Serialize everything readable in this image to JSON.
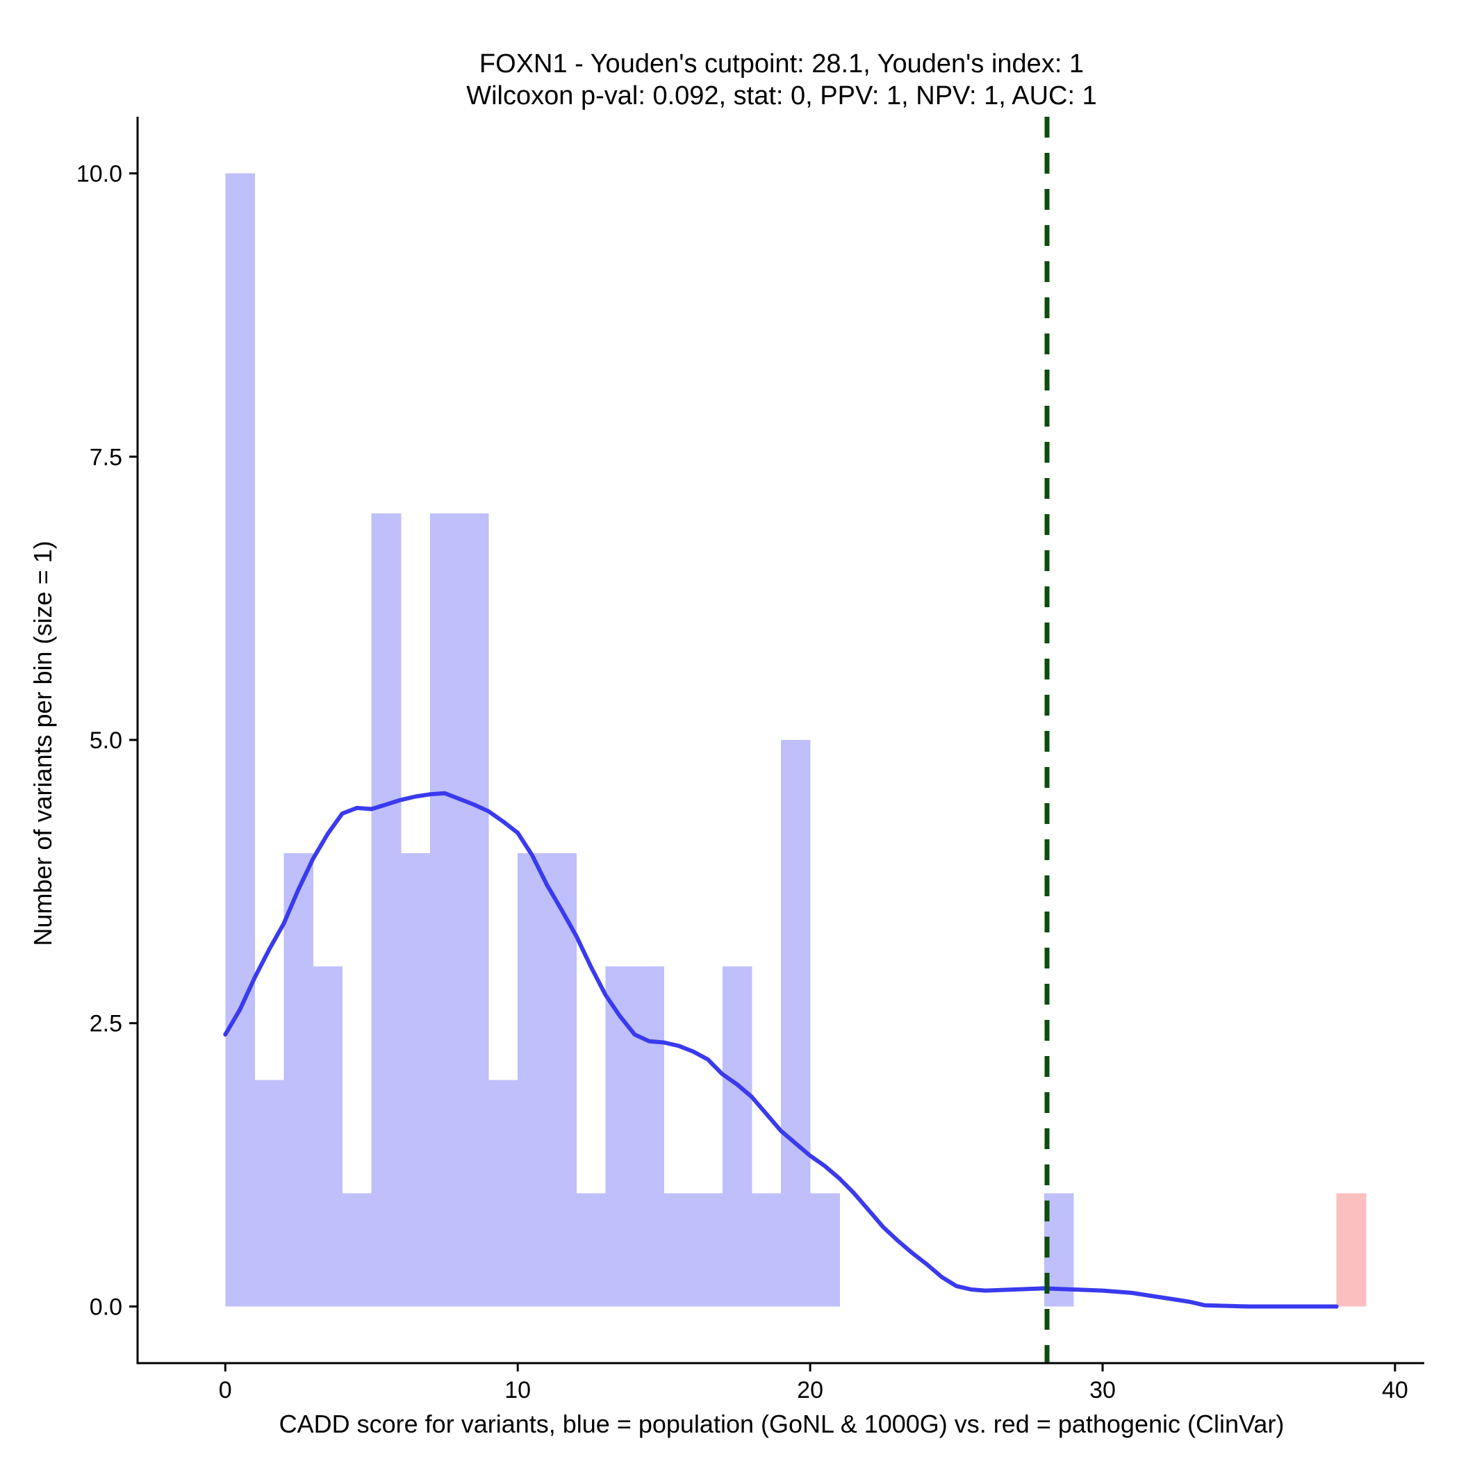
{
  "chart_data": {
    "type": "bar",
    "title_line1": "FOXN1 - Youden's cutpoint: 28.1, Youden's index: 1",
    "title_line2": "Wilcoxon p-val: 0.092, stat: 0, PPV: 1, NPV: 1, AUC: 1",
    "xlabel": "CADD score for variants, blue = population (GoNL & 1000G) vs. red = pathogenic (ClinVar)",
    "ylabel": "Number of variants per bin (size = 1)",
    "xlim": [
      -3,
      41
    ],
    "ylim": [
      -0.5,
      10.5
    ],
    "x_ticks": [
      0,
      10,
      20,
      30,
      40
    ],
    "x_tick_labels": [
      "0",
      "10",
      "20",
      "30",
      "40"
    ],
    "y_ticks": [
      0,
      2.5,
      5,
      7.5,
      10
    ],
    "y_tick_labels": [
      "0.0",
      "2.5",
      "5.0",
      "7.5",
      "10.0"
    ],
    "bin_width": 1,
    "grid": false,
    "colors": {
      "population": "#bfbffb",
      "pathogenic": "#fcbfc0",
      "density": "#3a3aee",
      "cutpoint": "#0d4d0d"
    },
    "series": [
      {
        "group": "population",
        "bin_starts": [
          0,
          1,
          2,
          3,
          4,
          5,
          6,
          7,
          8,
          9,
          10,
          11,
          12,
          13,
          14,
          15,
          16,
          17,
          18,
          19,
          20,
          28
        ],
        "values": [
          10,
          2,
          4,
          3,
          1,
          7,
          4,
          7,
          7,
          2,
          4,
          4,
          1,
          3,
          3,
          1,
          1,
          3,
          1,
          5,
          1,
          1
        ]
      },
      {
        "group": "pathogenic",
        "bin_starts": [
          38
        ],
        "values": [
          1
        ]
      }
    ],
    "density_curve": {
      "x": [
        0,
        0.5,
        1,
        1.5,
        2,
        2.5,
        3,
        3.5,
        4,
        4.5,
        5,
        5.5,
        6,
        6.5,
        7,
        7.5,
        8,
        8.5,
        9,
        9.5,
        10,
        10.5,
        11,
        11.5,
        12,
        12.5,
        13,
        13.5,
        14,
        14.5,
        15,
        15.5,
        16,
        16.5,
        17,
        17.5,
        18,
        18.5,
        19,
        19.5,
        20,
        20.5,
        21,
        21.5,
        22,
        22.5,
        23,
        23.5,
        24,
        24.5,
        25,
        25.5,
        26,
        27,
        28,
        29,
        30,
        31,
        32,
        33,
        33.5,
        35,
        36,
        37,
        38
      ],
      "y": [
        2.4,
        2.62,
        2.9,
        3.15,
        3.38,
        3.68,
        3.95,
        4.17,
        4.35,
        4.4,
        4.39,
        4.43,
        4.47,
        4.5,
        4.52,
        4.53,
        4.48,
        4.43,
        4.37,
        4.28,
        4.18,
        3.98,
        3.72,
        3.5,
        3.27,
        3.0,
        2.75,
        2.56,
        2.4,
        2.34,
        2.33,
        2.3,
        2.25,
        2.18,
        2.05,
        1.96,
        1.85,
        1.7,
        1.55,
        1.44,
        1.33,
        1.24,
        1.13,
        1.0,
        0.85,
        0.7,
        0.58,
        0.47,
        0.37,
        0.26,
        0.18,
        0.15,
        0.14,
        0.15,
        0.16,
        0.15,
        0.14,
        0.12,
        0.08,
        0.04,
        0.01,
        0.0,
        0.0,
        0.0,
        0.0
      ]
    },
    "cutpoint": 28.1
  }
}
